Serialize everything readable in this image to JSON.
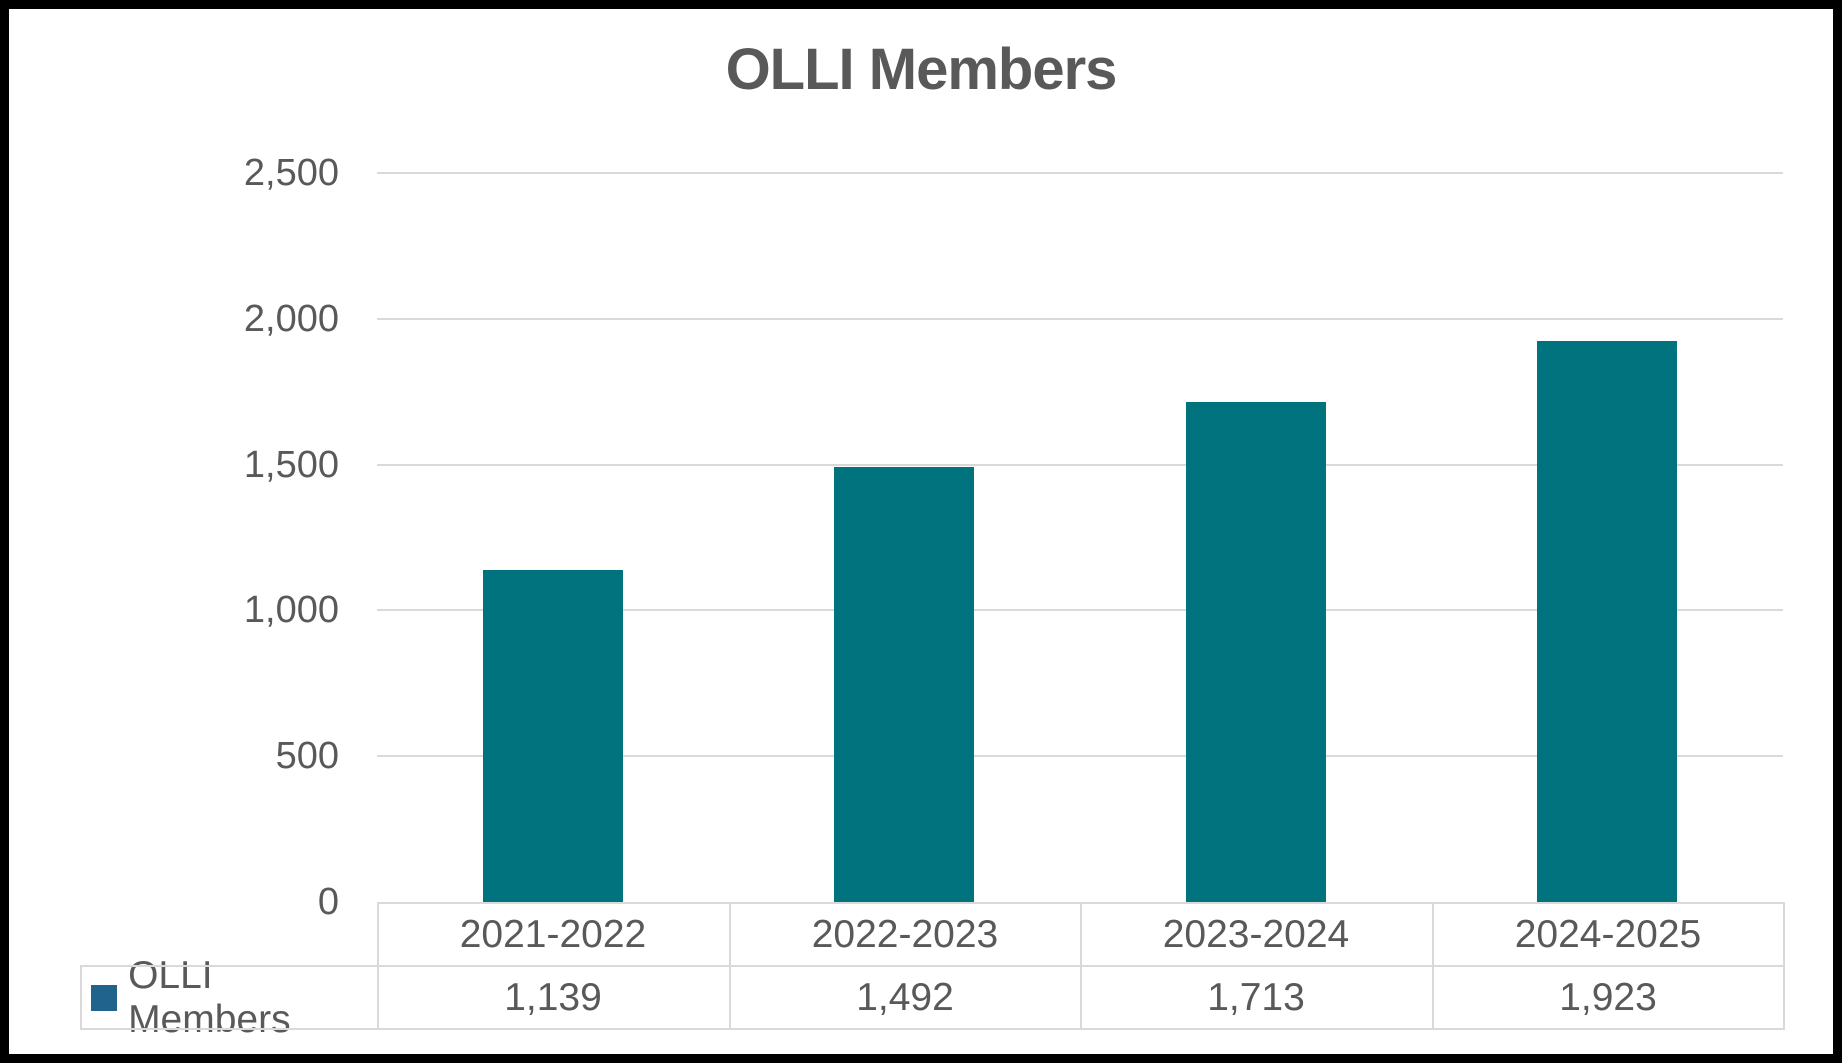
{
  "chart_data": {
    "type": "bar",
    "title": "OLLI Members",
    "categories": [
      "2021-2022",
      "2022-2023",
      "2023-2024",
      "2024-2025"
    ],
    "series": [
      {
        "name": "OLLI Members",
        "values": [
          1139,
          1492,
          1713,
          1923
        ]
      }
    ],
    "value_labels": [
      "1,139",
      "1,492",
      "1,713",
      "1,923"
    ],
    "yticks": [
      0,
      500,
      1000,
      1500,
      2000,
      2500
    ],
    "ytick_labels": [
      "0",
      "500",
      "1,000",
      "1,500",
      "2,000",
      "2,500"
    ],
    "ylim": [
      0,
      2500
    ],
    "xlabel": "",
    "ylabel": "",
    "grid": true,
    "legend_position": "data-table-left",
    "colors": {
      "bar": "#00737E",
      "legend_key": "#20638C",
      "text": "#595959",
      "gridline": "#D9D9D9",
      "frame_border": "#000000",
      "background": "#FFFFFF"
    }
  }
}
